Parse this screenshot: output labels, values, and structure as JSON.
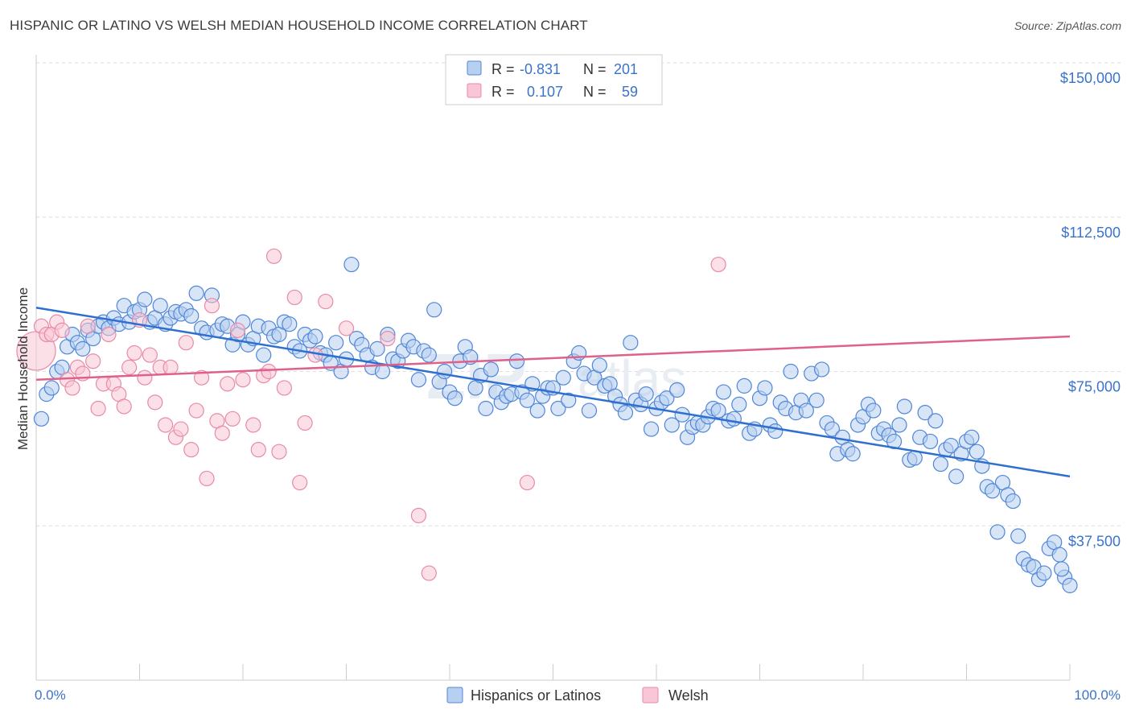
{
  "title": "HISPANIC OR LATINO VS WELSH MEDIAN HOUSEHOLD INCOME CORRELATION CHART",
  "source": "Source: ZipAtlas.com",
  "watermark": {
    "zip": "ZIP",
    "atlas": "atlas"
  },
  "colors": {
    "blue_fill": "#b8d0f0",
    "blue_stroke": "#4f86d8",
    "blue_line": "#2e6fd0",
    "pink_fill": "#f8c6d6",
    "pink_stroke": "#e88aa8",
    "pink_line": "#e0608c",
    "grid": "#dddddd",
    "axis_text": "#3b73c8"
  },
  "legend_top": [
    {
      "r_label": "R =",
      "r_value": "-0.831",
      "n_label": "N =",
      "n_value": "201"
    },
    {
      "r_label": "R =",
      "r_value": "0.107",
      "n_label": "N =",
      "n_value": "59"
    }
  ],
  "legend_bottom": [
    "Hispanics or Latinos",
    "Welsh"
  ],
  "chart_data": {
    "type": "scatter",
    "title": "HISPANIC OR LATINO VS WELSH MEDIAN HOUSEHOLD INCOME CORRELATION CHART",
    "xlabel": "",
    "ylabel": "Median Household Income",
    "xlim": [
      0,
      100
    ],
    "ylim": [
      0,
      150000
    ],
    "x_tick_labels": [
      "0.0%",
      "100.0%"
    ],
    "y_ticks": [
      37500,
      75000,
      112500,
      150000
    ],
    "y_tick_labels": [
      "$37,500",
      "$75,000",
      "$112,500",
      "$150,000"
    ],
    "grid": true,
    "series": [
      {
        "name": "Hispanics or Latinos",
        "trend": {
          "x": [
            0,
            100
          ],
          "y": [
            90500,
            49500
          ]
        },
        "points": [
          [
            0.5,
            63500
          ],
          [
            1,
            69500
          ],
          [
            1.5,
            71000
          ],
          [
            2,
            75000
          ],
          [
            2.5,
            76000
          ],
          [
            3,
            81000
          ],
          [
            3.5,
            84000
          ],
          [
            4,
            82000
          ],
          [
            4.5,
            80500
          ],
          [
            5,
            85000
          ],
          [
            5.5,
            83000
          ],
          [
            6,
            86000
          ],
          [
            6.5,
            87000
          ],
          [
            7,
            85500
          ],
          [
            7.5,
            88000
          ],
          [
            8,
            86500
          ],
          [
            8.5,
            91000
          ],
          [
            9,
            87000
          ],
          [
            9.5,
            89500
          ],
          [
            10,
            90000
          ],
          [
            10.5,
            92500
          ],
          [
            11,
            87000
          ],
          [
            11.5,
            88000
          ],
          [
            12,
            91000
          ],
          [
            12.5,
            86500
          ],
          [
            13,
            88000
          ],
          [
            13.5,
            89500
          ],
          [
            14,
            89000
          ],
          [
            14.5,
            90000
          ],
          [
            15,
            88500
          ],
          [
            15.5,
            94000
          ],
          [
            16,
            85500
          ],
          [
            16.5,
            84500
          ],
          [
            17,
            93500
          ],
          [
            17.5,
            85000
          ],
          [
            18,
            86500
          ],
          [
            18.5,
            86000
          ],
          [
            19,
            81500
          ],
          [
            19.5,
            84000
          ],
          [
            20,
            87000
          ],
          [
            20.5,
            81500
          ],
          [
            21,
            83000
          ],
          [
            21.5,
            86000
          ],
          [
            22,
            79000
          ],
          [
            22.5,
            85500
          ],
          [
            23,
            83500
          ],
          [
            23.5,
            84000
          ],
          [
            24,
            87000
          ],
          [
            24.5,
            86500
          ],
          [
            25,
            81000
          ],
          [
            25.5,
            80000
          ],
          [
            26,
            84000
          ],
          [
            26.5,
            82500
          ],
          [
            27,
            83500
          ],
          [
            27.5,
            79500
          ],
          [
            28,
            79000
          ],
          [
            28.5,
            77000
          ],
          [
            29,
            82000
          ],
          [
            29.5,
            75000
          ],
          [
            30,
            78000
          ],
          [
            30.5,
            101000
          ],
          [
            31,
            83000
          ],
          [
            31.5,
            81500
          ],
          [
            32,
            79000
          ],
          [
            32.5,
            76000
          ],
          [
            33,
            80500
          ],
          [
            33.5,
            75000
          ],
          [
            34,
            84000
          ],
          [
            34.5,
            78000
          ],
          [
            35,
            77500
          ],
          [
            35.5,
            80000
          ],
          [
            36,
            82500
          ],
          [
            36.5,
            81000
          ],
          [
            37,
            73000
          ],
          [
            37.5,
            80000
          ],
          [
            38,
            79000
          ],
          [
            38.5,
            90000
          ],
          [
            39,
            72500
          ],
          [
            39.5,
            75000
          ],
          [
            40,
            70000
          ],
          [
            40.5,
            68500
          ],
          [
            41,
            77500
          ],
          [
            41.5,
            81000
          ],
          [
            42,
            78500
          ],
          [
            42.5,
            71000
          ],
          [
            43,
            74000
          ],
          [
            43.5,
            66000
          ],
          [
            44,
            75500
          ],
          [
            44.5,
            70000
          ],
          [
            45,
            67500
          ],
          [
            45.5,
            69000
          ],
          [
            46,
            69500
          ],
          [
            46.5,
            77500
          ],
          [
            47,
            70000
          ],
          [
            47.5,
            68000
          ],
          [
            48,
            72000
          ],
          [
            48.5,
            65500
          ],
          [
            49,
            69000
          ],
          [
            49.5,
            71000
          ],
          [
            50,
            71000
          ],
          [
            50.5,
            66000
          ],
          [
            51,
            73500
          ],
          [
            51.5,
            68000
          ],
          [
            52,
            77500
          ],
          [
            52.5,
            79500
          ],
          [
            53,
            74500
          ],
          [
            53.5,
            65500
          ],
          [
            54,
            73500
          ],
          [
            54.5,
            76500
          ],
          [
            55,
            71500
          ],
          [
            55.5,
            72000
          ],
          [
            56,
            69000
          ],
          [
            56.5,
            67000
          ],
          [
            57,
            65000
          ],
          [
            57.5,
            82000
          ],
          [
            58,
            68000
          ],
          [
            58.5,
            67000
          ],
          [
            59,
            69500
          ],
          [
            59.5,
            61000
          ],
          [
            60,
            66000
          ],
          [
            60.5,
            67500
          ],
          [
            61,
            68500
          ],
          [
            61.5,
            62000
          ],
          [
            62,
            70500
          ],
          [
            62.5,
            64500
          ],
          [
            63,
            59000
          ],
          [
            63.5,
            61500
          ],
          [
            64,
            62500
          ],
          [
            64.5,
            62000
          ],
          [
            65,
            64000
          ],
          [
            65.5,
            66000
          ],
          [
            66,
            65500
          ],
          [
            66.5,
            70000
          ],
          [
            67,
            63000
          ],
          [
            67.5,
            63500
          ],
          [
            68,
            67000
          ],
          [
            68.5,
            71500
          ],
          [
            69,
            60000
          ],
          [
            69.5,
            61000
          ],
          [
            70,
            68500
          ],
          [
            70.5,
            71000
          ],
          [
            71,
            62000
          ],
          [
            71.5,
            60500
          ],
          [
            72,
            67500
          ],
          [
            72.5,
            66000
          ],
          [
            73,
            75000
          ],
          [
            73.5,
            65000
          ],
          [
            74,
            68000
          ],
          [
            74.5,
            65500
          ],
          [
            75,
            74500
          ],
          [
            75.5,
            68000
          ],
          [
            76,
            75500
          ],
          [
            76.5,
            62500
          ],
          [
            77,
            61000
          ],
          [
            77.5,
            55000
          ],
          [
            78,
            59000
          ],
          [
            78.5,
            56000
          ],
          [
            79,
            55000
          ],
          [
            79.5,
            62000
          ],
          [
            80,
            64000
          ],
          [
            80.5,
            67000
          ],
          [
            81,
            65500
          ],
          [
            81.5,
            60000
          ],
          [
            82,
            61000
          ],
          [
            82.5,
            59500
          ],
          [
            83,
            58000
          ],
          [
            83.5,
            62000
          ],
          [
            84,
            66500
          ],
          [
            84.5,
            53500
          ],
          [
            85,
            54000
          ],
          [
            85.5,
            59000
          ],
          [
            86,
            65000
          ],
          [
            86.5,
            58000
          ],
          [
            87,
            63000
          ],
          [
            87.5,
            52500
          ],
          [
            88,
            56000
          ],
          [
            88.5,
            57000
          ],
          [
            89,
            49500
          ],
          [
            89.5,
            55000
          ],
          [
            90,
            58000
          ],
          [
            90.5,
            59000
          ],
          [
            91,
            55500
          ],
          [
            91.5,
            52000
          ],
          [
            92,
            47000
          ],
          [
            92.5,
            46000
          ],
          [
            93,
            36000
          ],
          [
            93.5,
            48000
          ],
          [
            94,
            45000
          ],
          [
            94.5,
            43500
          ],
          [
            95,
            35000
          ],
          [
            95.5,
            29500
          ],
          [
            96,
            28000
          ],
          [
            96.5,
            27500
          ],
          [
            97,
            24500
          ],
          [
            97.5,
            26000
          ],
          [
            98,
            32000
          ],
          [
            98.5,
            33500
          ],
          [
            99,
            30500
          ],
          [
            99.5,
            25000
          ],
          [
            100,
            23000
          ],
          [
            99.2,
            27000
          ]
        ]
      },
      {
        "name": "Welsh",
        "trend": {
          "x": [
            0,
            100
          ],
          "y": [
            73000,
            83500
          ]
        },
        "points": [
          [
            0,
            80000
          ],
          [
            0.5,
            86000
          ],
          [
            1,
            84000
          ],
          [
            1.5,
            84000
          ],
          [
            2,
            87000
          ],
          [
            2.5,
            85000
          ],
          [
            3,
            73000
          ],
          [
            3.5,
            71000
          ],
          [
            4,
            76000
          ],
          [
            4.5,
            74500
          ],
          [
            5,
            86000
          ],
          [
            5.5,
            77500
          ],
          [
            6,
            66000
          ],
          [
            6.5,
            72000
          ],
          [
            7,
            84000
          ],
          [
            7.5,
            72000
          ],
          [
            8,
            69500
          ],
          [
            8.5,
            66500
          ],
          [
            9,
            76000
          ],
          [
            9.5,
            79500
          ],
          [
            10,
            87500
          ],
          [
            10.5,
            73500
          ],
          [
            11,
            79000
          ],
          [
            11.5,
            67500
          ],
          [
            12,
            76000
          ],
          [
            12.5,
            62000
          ],
          [
            13,
            76000
          ],
          [
            13.5,
            59000
          ],
          [
            14,
            61000
          ],
          [
            14.5,
            82000
          ],
          [
            15,
            56000
          ],
          [
            15.5,
            65500
          ],
          [
            16,
            73500
          ],
          [
            16.5,
            49000
          ],
          [
            17,
            91000
          ],
          [
            17.5,
            63000
          ],
          [
            18,
            60000
          ],
          [
            18.5,
            72000
          ],
          [
            19,
            63500
          ],
          [
            19.5,
            85000
          ],
          [
            20,
            73000
          ],
          [
            21,
            62000
          ],
          [
            21.5,
            56000
          ],
          [
            22,
            74000
          ],
          [
            22.5,
            75000
          ],
          [
            23,
            103000
          ],
          [
            23.5,
            55500
          ],
          [
            24,
            71000
          ],
          [
            25,
            93000
          ],
          [
            25.5,
            48000
          ],
          [
            26,
            62500
          ],
          [
            27,
            79000
          ],
          [
            28,
            92000
          ],
          [
            30,
            85500
          ],
          [
            34,
            83000
          ],
          [
            37,
            40000
          ],
          [
            38,
            26000
          ],
          [
            47.5,
            48000
          ],
          [
            66,
            101000
          ]
        ]
      }
    ]
  }
}
